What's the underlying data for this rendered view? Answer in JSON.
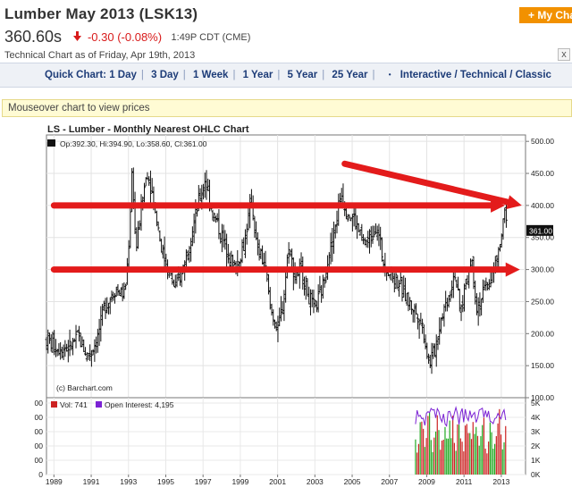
{
  "header": {
    "title": "Lumber May 2013 (LSK13)",
    "my_chart_label": "+ My Cha",
    "price": "360.60s",
    "change": "-0.30 (-0.08%)",
    "time": "1:49P CDT (CME)",
    "technical_note": "Technical Chart as of Friday, Apr 19th, 2013",
    "close_glyph": "x"
  },
  "nav": {
    "quick_chart_label": "Quick Chart:",
    "items": [
      "1 Day",
      "3 Day",
      "1 Week",
      "1 Year",
      "5 Year",
      "25 Year"
    ],
    "dot": "•",
    "modes": "Interactive / Technical / Classic"
  },
  "mouseover_text": "Mouseover chart to view prices",
  "chart_data": [
    {
      "type": "ohlc",
      "title": "LS - Lumber - Monthly Nearest OHLC Chart",
      "legend": "Op:392.30, Hi:394.90, Lo:358.60, Cl:361.00",
      "last_price_tag": "361.00",
      "credit": "(c) Barchart.com",
      "x_ticks": [
        "1989",
        "1991",
        "1993",
        "1995",
        "1997",
        "1999",
        "2001",
        "2003",
        "2005",
        "2007",
        "2009",
        "2011",
        "2013"
      ],
      "x_range": [
        1988.6,
        2014.3
      ],
      "y_ticks": [
        100,
        150,
        200,
        250,
        300,
        350,
        400,
        450,
        500
      ],
      "y_tick_labels": [
        "100.00",
        "150.00",
        "200.00",
        "250.00",
        "300.00",
        "350.00",
        "400.00",
        "450.00",
        "500.00"
      ],
      "ylim": [
        100,
        510
      ],
      "anchors": [
        [
          1988.6,
          190
        ],
        [
          1989.2,
          178
        ],
        [
          1989.9,
          180
        ],
        [
          1990.3,
          195
        ],
        [
          1990.8,
          165
        ],
        [
          1991.3,
          190
        ],
        [
          1991.7,
          240
        ],
        [
          1992.3,
          270
        ],
        [
          1992.8,
          260
        ],
        [
          1993.0,
          330
        ],
        [
          1993.2,
          460
        ],
        [
          1993.4,
          330
        ],
        [
          1993.7,
          400
        ],
        [
          1994.0,
          455
        ],
        [
          1994.4,
          400
        ],
        [
          1994.8,
          330
        ],
        [
          1995.1,
          300
        ],
        [
          1995.5,
          270
        ],
        [
          1995.9,
          300
        ],
        [
          1996.4,
          360
        ],
        [
          1996.8,
          410
        ],
        [
          1997.1,
          440
        ],
        [
          1997.5,
          390
        ],
        [
          1997.9,
          360
        ],
        [
          1998.3,
          330
        ],
        [
          1998.7,
          300
        ],
        [
          1999.2,
          340
        ],
        [
          1999.6,
          410
        ],
        [
          1999.9,
          330
        ],
        [
          2000.3,
          310
        ],
        [
          2000.6,
          240
        ],
        [
          2001.0,
          205
        ],
        [
          2001.3,
          250
        ],
        [
          2001.6,
          340
        ],
        [
          2001.9,
          290
        ],
        [
          2002.3,
          300
        ],
        [
          2002.7,
          255
        ],
        [
          2003.0,
          240
        ],
        [
          2003.4,
          270
        ],
        [
          2003.7,
          320
        ],
        [
          2004.0,
          350
        ],
        [
          2004.4,
          420
        ],
        [
          2004.7,
          390
        ],
        [
          2005.1,
          380
        ],
        [
          2005.6,
          340
        ],
        [
          2006.0,
          350
        ],
        [
          2006.3,
          370
        ],
        [
          2006.7,
          310
        ],
        [
          2007.1,
          290
        ],
        [
          2007.5,
          280
        ],
        [
          2008.0,
          250
        ],
        [
          2008.5,
          230
        ],
        [
          2008.8,
          210
        ],
        [
          2009.1,
          155
        ],
        [
          2009.4,
          170
        ],
        [
          2009.8,
          230
        ],
        [
          2010.2,
          260
        ],
        [
          2010.5,
          300
        ],
        [
          2010.8,
          230
        ],
        [
          2011.1,
          280
        ],
        [
          2011.4,
          320
        ],
        [
          2011.7,
          240
        ],
        [
          2012.0,
          260
        ],
        [
          2012.5,
          290
        ],
        [
          2012.9,
          330
        ],
        [
          2013.2,
          390
        ],
        [
          2013.3,
          361
        ]
      ],
      "annotations": {
        "upper_line_level": 400,
        "lower_line_level": 300,
        "trend_from": [
          2004.6,
          465
        ],
        "trend_to": [
          2014.1,
          400
        ]
      }
    },
    {
      "type": "bar",
      "legend_volume": "Vol: 741",
      "legend_oi": "Open Interest: 4,195",
      "y_ticks": [
        0,
        1000,
        2000,
        3000,
        4000,
        5000
      ],
      "y_tick_labels": [
        "0K",
        "1K",
        "2K",
        "3K",
        "4K",
        "5K"
      ],
      "left_tick_labels": [
        "0",
        "00",
        "00",
        "00",
        "00",
        "00"
      ],
      "ylim": [
        0,
        5000
      ],
      "data_start_year": 2008.4,
      "volume_levels": [
        3200,
        2600,
        3800,
        4200,
        4600
      ]
    }
  ],
  "colors": {
    "up_bar": "#22aa22",
    "down_bar": "#cc2222",
    "ohlc": "#111111",
    "arrow": "#e31b1b",
    "open_interest": "#7b22d4",
    "accent": "#f29100"
  }
}
